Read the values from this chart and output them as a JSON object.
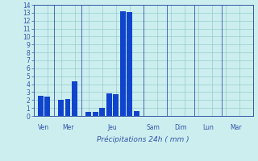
{
  "bar_data": [
    {
      "x": 1,
      "height": 2.5
    },
    {
      "x": 2,
      "height": 2.4
    },
    {
      "x": 4,
      "height": 2.0
    },
    {
      "x": 5,
      "height": 2.1
    },
    {
      "x": 6,
      "height": 4.4
    },
    {
      "x": 8,
      "height": 0.5
    },
    {
      "x": 9,
      "height": 0.5
    },
    {
      "x": 10,
      "height": 1.0
    },
    {
      "x": 11,
      "height": 2.8
    },
    {
      "x": 12,
      "height": 2.7
    },
    {
      "x": 13,
      "height": 13.2
    },
    {
      "x": 14,
      "height": 13.1
    },
    {
      "x": 15,
      "height": 0.6
    }
  ],
  "bar_color": "#1144cc",
  "bar_width": 0.8,
  "background_color": "#cceeee",
  "plot_bg_color": "#cceeee",
  "grid_color": "#99cccc",
  "axis_color": "#3355aa",
  "tick_color": "#3355aa",
  "xlabel": "Précipitations 24h ( mm )",
  "ylim": [
    0,
    14
  ],
  "yticks": [
    0,
    1,
    2,
    3,
    4,
    5,
    6,
    7,
    8,
    9,
    10,
    11,
    12,
    13,
    14
  ],
  "day_labels": [
    {
      "label": "Ven",
      "x": 1.5
    },
    {
      "label": "Mer",
      "x": 5.0
    },
    {
      "label": "Jeu",
      "x": 11.5
    },
    {
      "label": "Sam",
      "x": 17.5
    },
    {
      "label": "Dim",
      "x": 21.5
    },
    {
      "label": "Lun",
      "x": 25.5
    },
    {
      "label": "Mar",
      "x": 29.5
    }
  ],
  "day_dividers": [
    3.0,
    7.0,
    16.0,
    19.5,
    23.5,
    27.5
  ],
  "xlim": [
    0,
    32
  ]
}
